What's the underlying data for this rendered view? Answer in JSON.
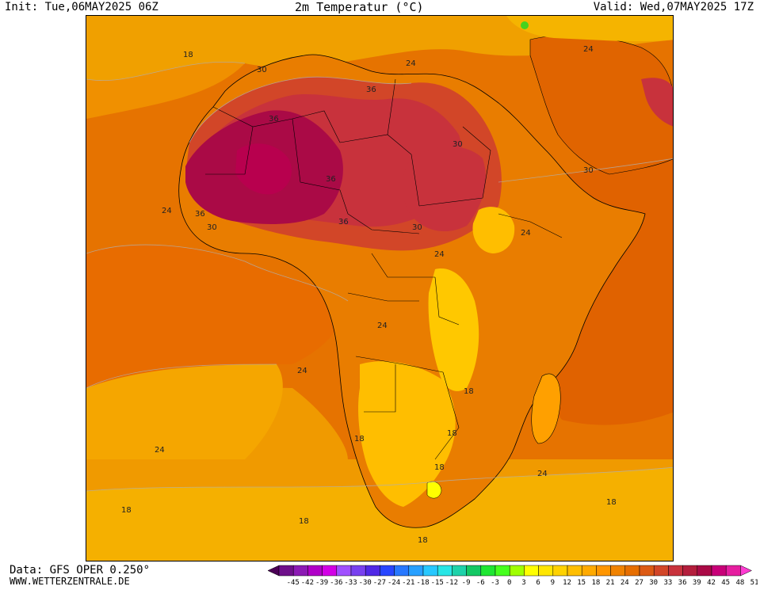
{
  "header": {
    "init": "Init: Tue,06MAY2025 06Z",
    "title": "2m Temperatur (°C)",
    "valid": "Valid: Wed,07MAY2025 17Z"
  },
  "footer": {
    "source": "Data: GFS OPER 0.250°",
    "site": "WWW.WETTERZENTRALE.DE"
  },
  "map": {
    "region": "Africa",
    "contour_labels": [
      {
        "text": "18",
        "place": "north-atlantic"
      },
      {
        "text": "30",
        "place": "western-sahara"
      },
      {
        "text": "24",
        "place": "mediterranean"
      },
      {
        "text": "24",
        "place": "middle-east"
      },
      {
        "text": "36",
        "place": "algeria"
      },
      {
        "text": "36",
        "place": "mali"
      },
      {
        "text": "36",
        "place": "libya"
      },
      {
        "text": "30",
        "place": "sudan"
      },
      {
        "text": "30",
        "place": "arabian-sea"
      },
      {
        "text": "36",
        "place": "nigeria"
      },
      {
        "text": "36",
        "place": "guinea"
      },
      {
        "text": "30",
        "place": "ivory-coast"
      },
      {
        "text": "24",
        "place": "gulf-of-guinea"
      },
      {
        "text": "30",
        "place": "central-african-republic"
      },
      {
        "text": "24",
        "place": "somalia"
      },
      {
        "text": "24",
        "place": "congo"
      },
      {
        "text": "24",
        "place": "angola"
      },
      {
        "text": "24",
        "place": "south-atlantic"
      },
      {
        "text": "18",
        "place": "zambia"
      },
      {
        "text": "18",
        "place": "mozambique"
      },
      {
        "text": "18",
        "place": "namibia"
      },
      {
        "text": "18",
        "place": "south-africa"
      },
      {
        "text": "24",
        "place": "indian-ocean"
      },
      {
        "text": "24",
        "place": "southwest-atlantic"
      },
      {
        "text": "18",
        "place": "far-south-atlantic"
      },
      {
        "text": "18",
        "place": "south-of-cape"
      },
      {
        "text": "18",
        "place": "southern-ocean"
      },
      {
        "text": "18",
        "place": "southeast-indian-ocean"
      }
    ]
  },
  "legend": {
    "labels": [
      "-45",
      "-42",
      "-39",
      "-36",
      "-33",
      "-30",
      "-27",
      "-24",
      "-21",
      "-18",
      "-15",
      "-12",
      "-9",
      "-6",
      "-3",
      "0",
      "3",
      "6",
      "9",
      "12",
      "15",
      "18",
      "21",
      "24",
      "27",
      "30",
      "33",
      "36",
      "39",
      "42",
      "45",
      "48",
      "51"
    ],
    "colors": [
      "#4b0055",
      "#6e0f8a",
      "#8c1ab4",
      "#b000c8",
      "#d200e6",
      "#a050ff",
      "#7840f0",
      "#5028e6",
      "#2846ff",
      "#2878ff",
      "#28a0ff",
      "#28c8ff",
      "#28e6e6",
      "#1ed2aa",
      "#14c864",
      "#1ee632",
      "#46ff1e",
      "#a0ff00",
      "#ffff00",
      "#ffe600",
      "#ffd200",
      "#ffbe00",
      "#ffaa00",
      "#ff9600",
      "#f08200",
      "#e66e00",
      "#dc5a14",
      "#d24628",
      "#c8323c",
      "#b41e3c",
      "#aa0a46",
      "#c80078",
      "#e61ea0",
      "#ff3cd2"
    ]
  }
}
